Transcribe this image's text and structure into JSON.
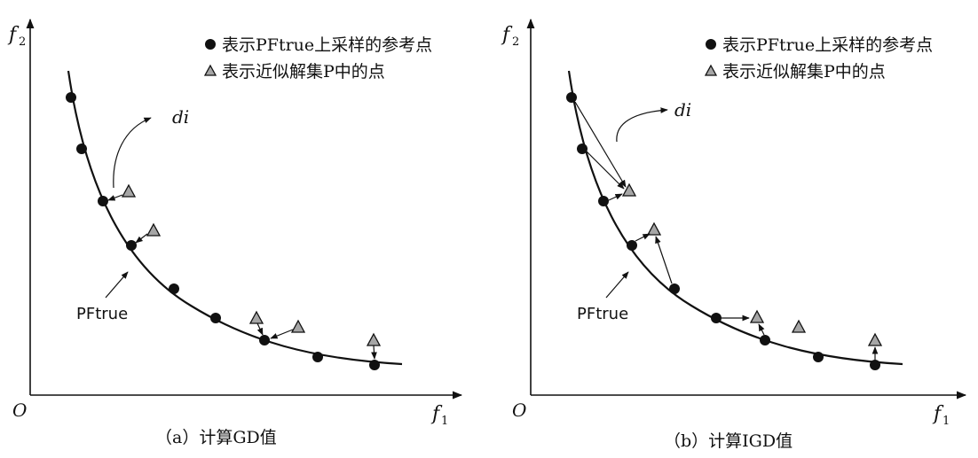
{
  "panels": [
    {
      "id": "a",
      "caption": "（a）计算GD值",
      "y_axis_label": "f",
      "y_axis_sub": "2",
      "x_axis_label": "f",
      "x_axis_sub": "1",
      "origin_label": "O",
      "curve_label": "PFtrue",
      "distance_label": "di",
      "legend": [
        {
          "marker": "circle",
          "text": "表示PFtrue上采样的参考点"
        },
        {
          "marker": "triangle",
          "text": "表示近似解集P中的点"
        }
      ]
    },
    {
      "id": "b",
      "caption": "（b）计算IGD值",
      "y_axis_label": "f",
      "y_axis_sub": "2",
      "x_axis_label": "f",
      "x_axis_sub": "1",
      "origin_label": "O",
      "curve_label": "PFtrue",
      "distance_label": "di",
      "legend": [
        {
          "marker": "circle",
          "text": "表示PFtrue上采样的参考点"
        },
        {
          "marker": "triangle",
          "text": "表示近似解集P中的点"
        }
      ]
    }
  ],
  "colors": {
    "ink": "#111111",
    "triangle_fill": "#a6a6a6"
  }
}
